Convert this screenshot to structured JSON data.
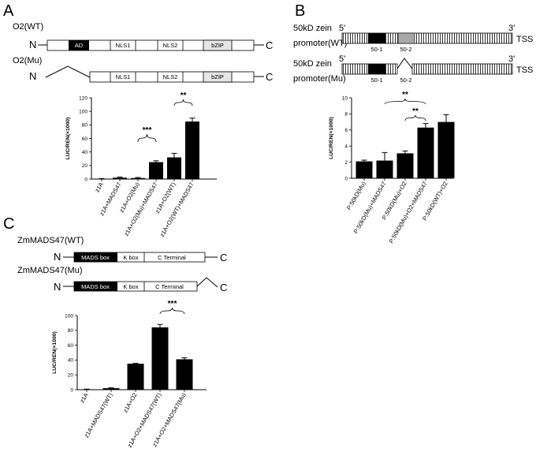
{
  "panels": {
    "A": {
      "letter": "A",
      "constructs": [
        {
          "name": "O2(WT)",
          "n_label": "N",
          "c_label": "C",
          "domains": [
            {
              "label": "AD",
              "fill": "#000000"
            },
            {
              "label": "NLS1",
              "fill": "#ffffff"
            },
            {
              "label": "NLS2",
              "fill": "#ffffff"
            },
            {
              "label": "bZIP",
              "fill": "#e6e6e6"
            }
          ]
        },
        {
          "name": "O2(Mu)",
          "n_label": "N",
          "c_label": "C",
          "domains": [
            {
              "label": "NLS1",
              "fill": "#ffffff"
            },
            {
              "label": "NLS2",
              "fill": "#ffffff"
            },
            {
              "label": "bZIP",
              "fill": "#e6e6e6"
            }
          ]
        }
      ]
    },
    "B": {
      "letter": "B",
      "constructs": [
        {
          "name_line1": "50kD zein",
          "name_line2": "promoter(WT)",
          "five": "5'",
          "three": "3'",
          "tss": "TSS",
          "box1": "50-1",
          "box2": "50-2"
        },
        {
          "name_line1": "50kD zein",
          "name_line2": "promoter(Mu)",
          "five": "5'",
          "three": "3'",
          "tss": "TSS",
          "box1": "50-1",
          "box2": "50-2"
        }
      ]
    },
    "C": {
      "letter": "C",
      "constructs": [
        {
          "name": "ZmMADS47(WT)",
          "n_label": "N",
          "c_label": "C",
          "domains": [
            {
              "label": "MADS box",
              "fill": "#000000"
            },
            {
              "label": "K box",
              "fill": "#ffffff"
            },
            {
              "label": "C Terminal",
              "fill": "#ffffff"
            }
          ]
        },
        {
          "name": "ZmMADS47(Mu)",
          "n_label": "N",
          "c_label": "C",
          "domains": [
            {
              "label": "MADS box",
              "fill": "#000000"
            },
            {
              "label": "K box",
              "fill": "#ffffff"
            },
            {
              "label": "C Terminal",
              "fill": "#ffffff"
            }
          ]
        }
      ]
    }
  },
  "chart_data": [
    {
      "panel": "A",
      "type": "bar",
      "ylabel": "LUC/REN(×1000)",
      "ylim": [
        0,
        120
      ],
      "yticks": [
        0,
        20,
        40,
        60,
        80,
        100,
        120
      ],
      "categories": [
        "z1A",
        "z1A+MADS47",
        "z1A+O2(Mu)",
        "z1A+O2(Mu)+MADS47",
        "z1A+O2(WT)",
        "z1A+O2(WT)+MADS47"
      ],
      "values": [
        0.5,
        2,
        1.5,
        25,
        32,
        85
      ],
      "errors": [
        0.3,
        1,
        0.8,
        2,
        6,
        5
      ],
      "bar_color": "#000000",
      "significance": [
        {
          "between": [
            2,
            3
          ],
          "label": "***"
        },
        {
          "between": [
            4,
            5
          ],
          "label": "**"
        }
      ]
    },
    {
      "panel": "B",
      "type": "bar",
      "ylabel": "LUC/REN(×1000)",
      "ylim": [
        0,
        10
      ],
      "yticks": [
        0,
        2,
        4,
        6,
        8,
        10
      ],
      "categories": [
        "P:50kD(Mu)",
        "P:50kD(Mu)+MADS47",
        "P:50kD(Mu)+O2",
        "P:50kD(Mu)+O2+MADS47",
        "P:50kD(WT)+O2"
      ],
      "values": [
        2.1,
        2.2,
        3.1,
        6.3,
        7.0
      ],
      "errors": [
        0.15,
        1.0,
        0.3,
        0.5,
        0.9
      ],
      "bar_color": "#000000",
      "significance": [
        {
          "between": [
            2,
            3
          ],
          "label": "**"
        },
        {
          "between": [
            1,
            3
          ],
          "label": "**"
        }
      ]
    },
    {
      "panel": "C",
      "type": "bar",
      "ylabel": "LUC/REN(×1000)",
      "ylim": [
        0,
        100
      ],
      "yticks": [
        0,
        20,
        40,
        60,
        80,
        100
      ],
      "categories": [
        "z1A",
        "z1A+MADS47(WT)",
        "z1A+O2",
        "z1A+O2+MADS47(WT)",
        "z1A+O2+MADS47(Mu)"
      ],
      "values": [
        0.5,
        2,
        35,
        84,
        41
      ],
      "errors": [
        0.3,
        0.5,
        0.5,
        4,
        2
      ],
      "bar_color": "#000000",
      "significance": [
        {
          "between": [
            3,
            4
          ],
          "label": "***"
        }
      ]
    }
  ]
}
